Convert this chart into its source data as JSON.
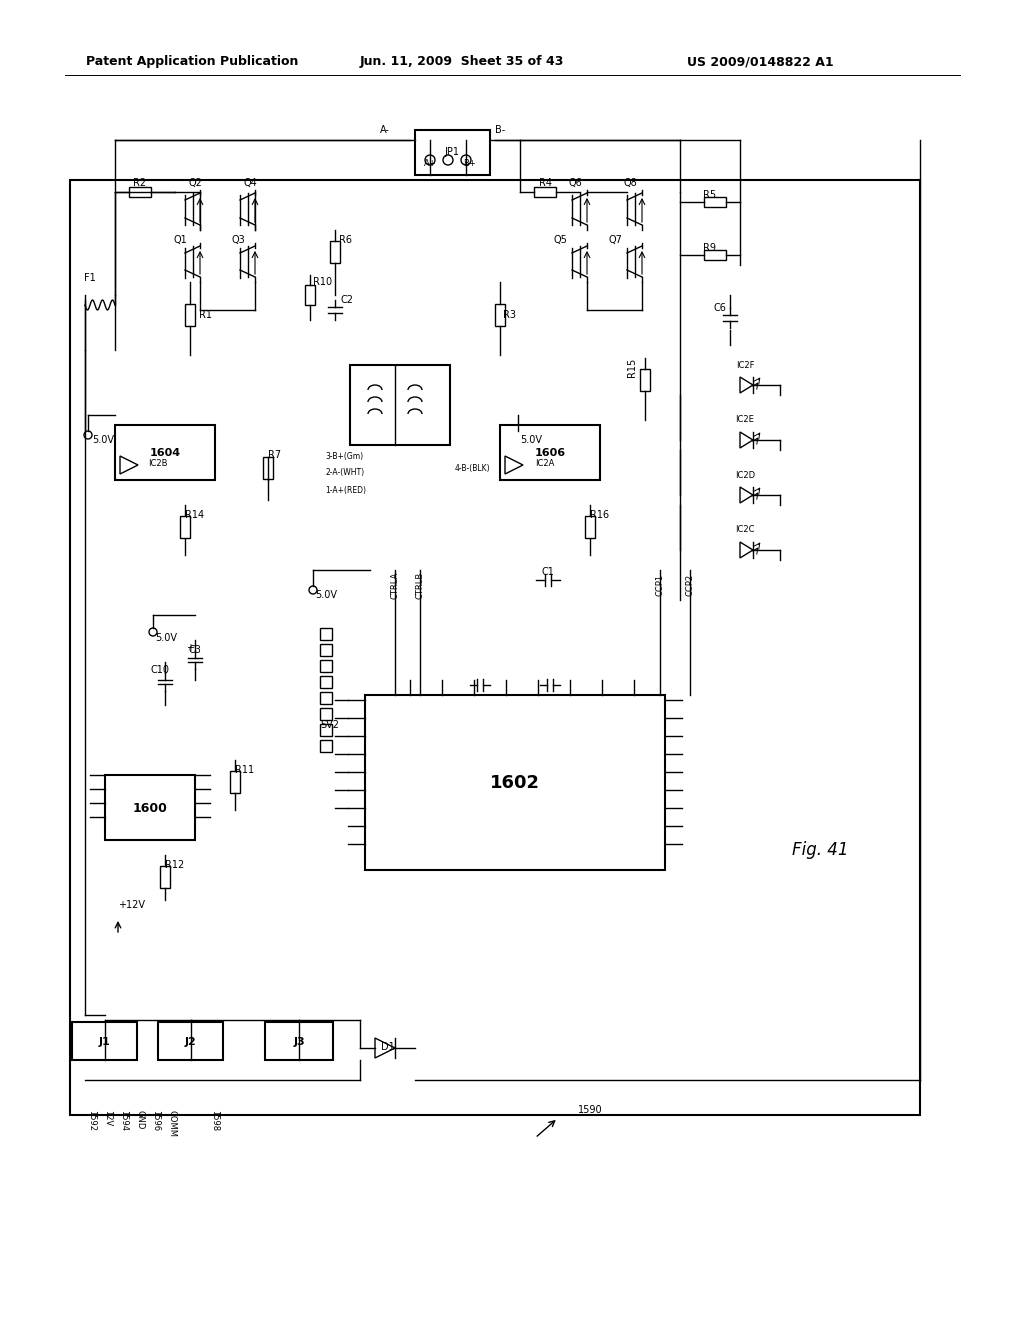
{
  "title_left": "Patent Application Publication",
  "title_mid": "Jun. 11, 2009  Sheet 35 of 43",
  "title_right": "US 2009/0148822 A1",
  "fig_label": "Fig. 41",
  "bg_color": "#ffffff",
  "line_color": "#000000",
  "font_size_header": 9,
  "font_size_label": 7,
  "font_size_component": 7,
  "font_size_fig": 11
}
